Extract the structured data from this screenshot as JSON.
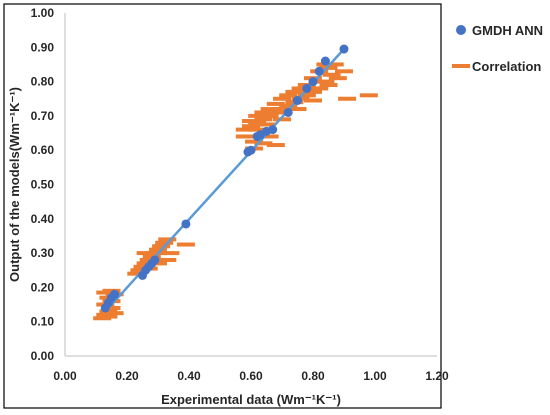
{
  "chart_data": {
    "type": "scatter",
    "xlabel": "Experimental data (Wm⁻¹K⁻¹)",
    "ylabel": "Output of the models(Wm⁻¹K⁻¹)",
    "xlim": [
      0,
      1.2
    ],
    "ylim": [
      0,
      1.0
    ],
    "x_ticks": [
      "0.00",
      "0.20",
      "0.40",
      "0.60",
      "0.80",
      "1.00",
      "1.20"
    ],
    "y_ticks": [
      "0.00",
      "0.10",
      "0.20",
      "0.30",
      "0.40",
      "0.50",
      "0.60",
      "0.70",
      "0.80",
      "0.90",
      "1.00"
    ],
    "grid": false,
    "legend_position": "right",
    "series": [
      {
        "name": "GMDH ANN",
        "marker": "circle",
        "color": "#4472C4",
        "points": [
          [
            0.13,
            0.14
          ],
          [
            0.14,
            0.155
          ],
          [
            0.15,
            0.17
          ],
          [
            0.16,
            0.18
          ],
          [
            0.25,
            0.235
          ],
          [
            0.26,
            0.25
          ],
          [
            0.27,
            0.26
          ],
          [
            0.28,
            0.27
          ],
          [
            0.29,
            0.28
          ],
          [
            0.39,
            0.385
          ],
          [
            0.59,
            0.595
          ],
          [
            0.6,
            0.6
          ],
          [
            0.62,
            0.64
          ],
          [
            0.63,
            0.645
          ],
          [
            0.65,
            0.655
          ],
          [
            0.67,
            0.66
          ],
          [
            0.72,
            0.71
          ],
          [
            0.75,
            0.745
          ],
          [
            0.78,
            0.78
          ],
          [
            0.8,
            0.8
          ],
          [
            0.82,
            0.83
          ],
          [
            0.84,
            0.86
          ],
          [
            0.9,
            0.895
          ]
        ]
      },
      {
        "name": "Correlation",
        "marker": "dash",
        "color": "#ED7D31",
        "points": [
          [
            0.12,
            0.11
          ],
          [
            0.13,
            0.12
          ],
          [
            0.14,
            0.13
          ],
          [
            0.15,
            0.14
          ],
          [
            0.13,
            0.15
          ],
          [
            0.15,
            0.16
          ],
          [
            0.14,
            0.17
          ],
          [
            0.16,
            0.18
          ],
          [
            0.15,
            0.19
          ],
          [
            0.13,
            0.185
          ],
          [
            0.16,
            0.125
          ],
          [
            0.14,
            0.115
          ],
          [
            0.23,
            0.24
          ],
          [
            0.24,
            0.25
          ],
          [
            0.25,
            0.26
          ],
          [
            0.26,
            0.27
          ],
          [
            0.27,
            0.28
          ],
          [
            0.28,
            0.29
          ],
          [
            0.29,
            0.3
          ],
          [
            0.3,
            0.31
          ],
          [
            0.31,
            0.32
          ],
          [
            0.32,
            0.33
          ],
          [
            0.33,
            0.34
          ],
          [
            0.27,
            0.255
          ],
          [
            0.3,
            0.27
          ],
          [
            0.34,
            0.3
          ],
          [
            0.26,
            0.3
          ],
          [
            0.39,
            0.325
          ],
          [
            0.33,
            0.28
          ],
          [
            0.58,
            0.66
          ],
          [
            0.6,
            0.67
          ],
          [
            0.62,
            0.68
          ],
          [
            0.64,
            0.69
          ],
          [
            0.66,
            0.7
          ],
          [
            0.68,
            0.71
          ],
          [
            0.7,
            0.72
          ],
          [
            0.72,
            0.73
          ],
          [
            0.74,
            0.74
          ],
          [
            0.76,
            0.75
          ],
          [
            0.78,
            0.76
          ],
          [
            0.8,
            0.77
          ],
          [
            0.82,
            0.78
          ],
          [
            0.84,
            0.8
          ],
          [
            0.86,
            0.82
          ],
          [
            0.85,
            0.84
          ],
          [
            0.84,
            0.85
          ],
          [
            0.82,
            0.83
          ],
          [
            0.8,
            0.81
          ],
          [
            0.78,
            0.79
          ],
          [
            0.76,
            0.78
          ],
          [
            0.74,
            0.77
          ],
          [
            0.72,
            0.76
          ],
          [
            0.7,
            0.75
          ],
          [
            0.68,
            0.735
          ],
          [
            0.66,
            0.72
          ],
          [
            0.64,
            0.71
          ],
          [
            0.62,
            0.7
          ],
          [
            0.6,
            0.685
          ],
          [
            0.62,
            0.66
          ],
          [
            0.65,
            0.675
          ],
          [
            0.7,
            0.69
          ],
          [
            0.75,
            0.72
          ],
          [
            0.8,
            0.745
          ],
          [
            0.85,
            0.79
          ],
          [
            0.64,
            0.62
          ],
          [
            0.68,
            0.615
          ],
          [
            0.61,
            0.605
          ],
          [
            0.66,
            0.64
          ],
          [
            0.58,
            0.64
          ],
          [
            0.61,
            0.625
          ],
          [
            0.91,
            0.75
          ],
          [
            0.98,
            0.76
          ],
          [
            0.88,
            0.81
          ],
          [
            0.9,
            0.83
          ],
          [
            0.87,
            0.85
          ]
        ]
      },
      {
        "name": "",
        "marker": "line",
        "color": "#5B9BD5",
        "points": [
          [
            0.13,
            0.13
          ],
          [
            0.9,
            0.895
          ]
        ]
      }
    ]
  }
}
